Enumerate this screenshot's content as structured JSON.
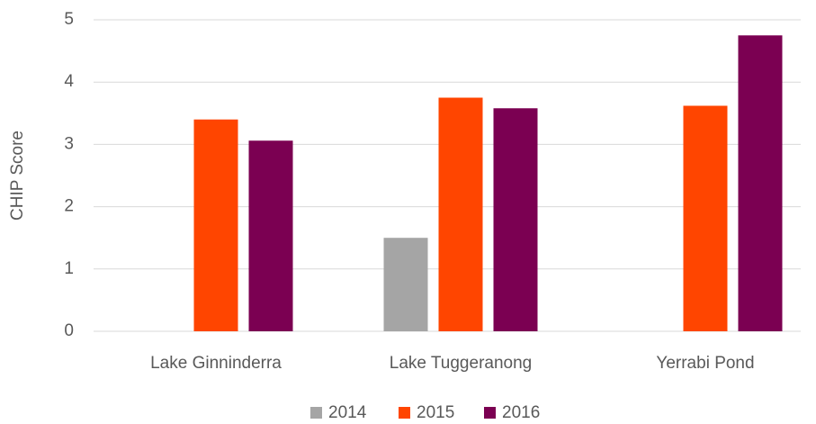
{
  "chart_data": {
    "type": "bar",
    "categories": [
      "Lake Ginninderra",
      "Lake Tuggeranong",
      "Yerrabi Pond"
    ],
    "series": [
      {
        "name": "2014",
        "color": "#a5a5a5",
        "values": [
          null,
          1.5,
          null
        ]
      },
      {
        "name": "2015",
        "color": "#ff4500",
        "values": [
          3.4,
          3.75,
          3.62
        ]
      },
      {
        "name": "2016",
        "color": "#7b0052",
        "values": [
          3.06,
          3.58,
          4.75
        ]
      }
    ],
    "y_label": "CHIP Score",
    "ylim": [
      0,
      5
    ],
    "yticks": [
      0,
      1,
      2,
      3,
      4,
      5
    ],
    "grid": true,
    "legend": "bottom"
  }
}
